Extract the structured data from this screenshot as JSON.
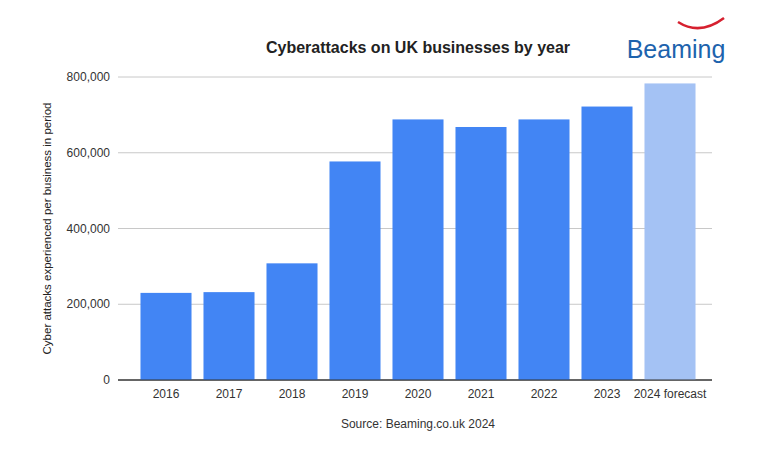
{
  "chart_data": {
    "type": "bar",
    "title": "Cyberattacks on UK businesses by year",
    "y_label": "Cyber attacks experienced per business in period",
    "source": "Source: Beaming.co.uk 2024",
    "logo": "Beaming",
    "categories": [
      "2016",
      "2017",
      "2018",
      "2019",
      "2020",
      "2021",
      "2022",
      "2023",
      "2024 forecast"
    ],
    "values": [
      230000,
      232000,
      308000,
      577000,
      688000,
      668000,
      688000,
      722000,
      783000
    ],
    "colors": [
      "#4285f4",
      "#4285f4",
      "#4285f4",
      "#4285f4",
      "#4285f4",
      "#4285f4",
      "#4285f4",
      "#4285f4",
      "#a4c2f4"
    ],
    "ylim": [
      0,
      800000
    ],
    "yticks": [
      0,
      {
        "value": 200000,
        "label": "200,000"
      },
      {
        "value": 400000,
        "label": "400,000"
      },
      {
        "value": 600000,
        "label": "600,000"
      },
      {
        "value": 800000,
        "label": "800,000"
      }
    ],
    "grid": true
  }
}
